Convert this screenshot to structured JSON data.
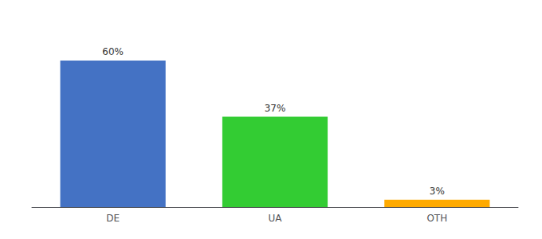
{
  "chart_data": {
    "type": "bar",
    "categories": [
      "DE",
      "UA",
      "OTH"
    ],
    "values": [
      60,
      37,
      3
    ],
    "value_labels": [
      "60%",
      "37%",
      "3%"
    ],
    "colors": [
      "#4472c4",
      "#33cc33",
      "#ffaa00"
    ],
    "ylim": [
      0,
      75
    ],
    "data_labels": true,
    "tick_labels": "x",
    "grid": false
  }
}
